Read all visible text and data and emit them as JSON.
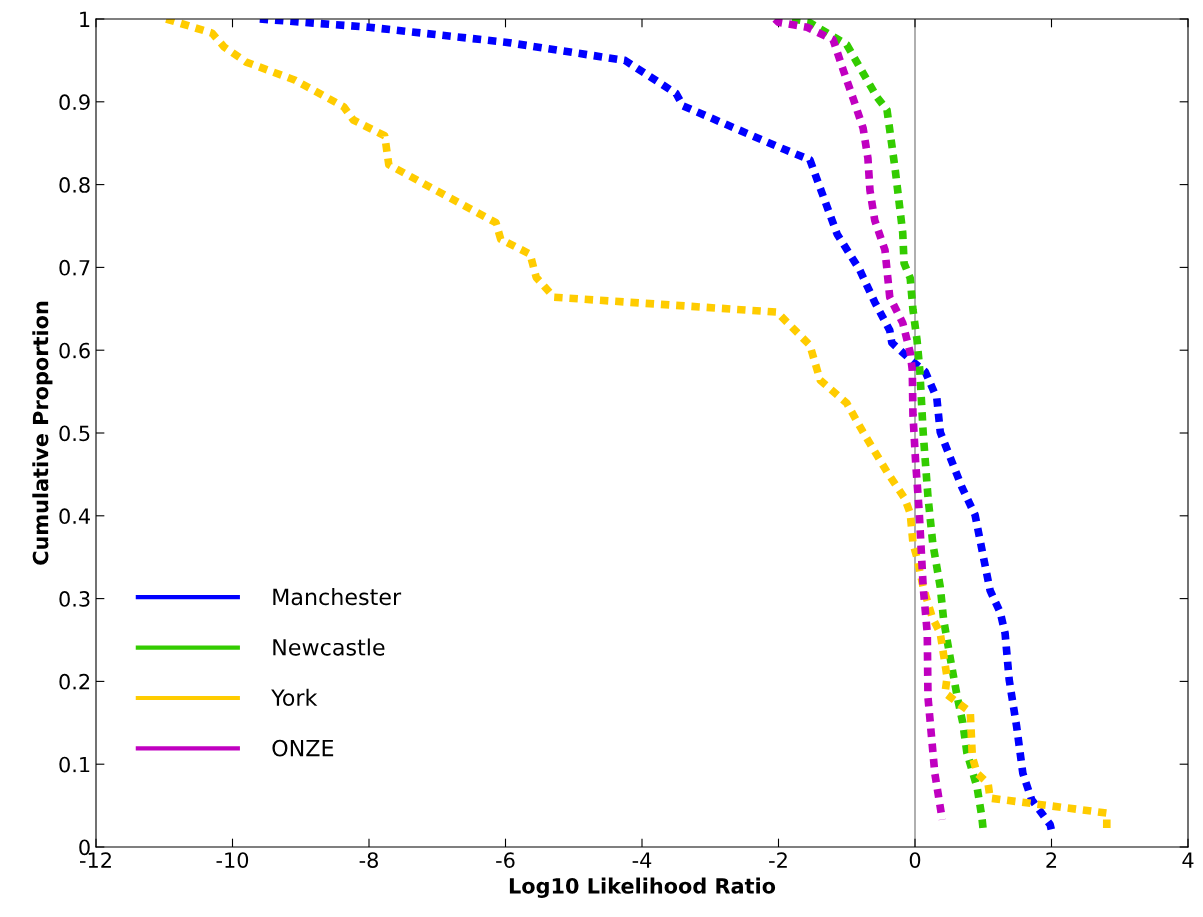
{
  "chart_data": {
    "type": "line",
    "xlabel": "Log10 Likelihood Ratio",
    "ylabel": "Cumulative Proportion",
    "xlim": [
      -12,
      4
    ],
    "ylim": [
      0,
      1
    ],
    "xticks": [
      -12,
      -10,
      -8,
      -6,
      -4,
      -2,
      0,
      2,
      4
    ],
    "yticks": [
      0,
      0.1,
      0.2,
      0.3,
      0.4,
      0.5,
      0.6,
      0.7,
      0.8,
      0.9,
      1
    ],
    "grid": false,
    "legend": "lower left",
    "line_style": "dotted",
    "marker": "none",
    "ref_lines": [
      {
        "axis": "x",
        "value": 0,
        "color": "#a0a0a0",
        "line_style": "solid"
      }
    ],
    "series": [
      {
        "name": "Manchester",
        "color": "#0000ff",
        "x": [
          -9.6,
          -8.0,
          -6.0,
          -4.25,
          -3.5,
          -3.4,
          -1.9,
          -1.54,
          -1.47,
          -1.14,
          -0.81,
          -0.59,
          -0.37,
          -0.34,
          -0.03,
          0.15,
          0.32,
          0.37,
          0.69,
          0.88,
          1.01,
          1.1,
          1.25,
          1.32,
          1.38,
          1.49,
          1.58,
          1.71,
          1.98,
          2.0
        ],
        "values": [
          1.0,
          0.99,
          0.972,
          0.95,
          0.91,
          0.895,
          0.842,
          0.83,
          0.814,
          0.74,
          0.697,
          0.658,
          0.624,
          0.609,
          0.586,
          0.574,
          0.542,
          0.501,
          0.434,
          0.401,
          0.347,
          0.31,
          0.283,
          0.258,
          0.202,
          0.145,
          0.089,
          0.057,
          0.027,
          0.02
        ]
      },
      {
        "name": "Newcastle",
        "color": "#33cc00",
        "x": [
          -1.8,
          -1.57,
          -1.0,
          -0.56,
          -0.41,
          -0.29,
          -0.18,
          -0.16,
          -0.07,
          -0.03,
          0.03,
          0.07,
          0.12,
          0.19,
          0.26,
          0.37,
          0.42,
          0.54,
          0.62,
          0.7,
          0.76,
          0.91,
          0.98,
          1.0
        ],
        "values": [
          1.0,
          0.997,
          0.969,
          0.906,
          0.89,
          0.818,
          0.742,
          0.705,
          0.687,
          0.649,
          0.612,
          0.576,
          0.5,
          0.423,
          0.367,
          0.314,
          0.274,
          0.217,
          0.181,
          0.15,
          0.114,
          0.072,
          0.036,
          0.02
        ]
      },
      {
        "name": "York",
        "color": "#ffcc00",
        "x": [
          -10.97,
          -10.3,
          -10.12,
          -9.8,
          -9.08,
          -8.37,
          -8.23,
          -7.77,
          -7.71,
          -6.14,
          -6.07,
          -5.64,
          -5.55,
          -5.29,
          -2.02,
          -1.89,
          -1.54,
          -1.39,
          -1.0,
          -0.76,
          -0.41,
          -0.15,
          -0.07,
          -0.03,
          0.03,
          0.12,
          0.25,
          0.37,
          0.47,
          0.44,
          0.63,
          0.81,
          0.84,
          0.91,
          1.07,
          1.1,
          2.81,
          2.81
        ],
        "values": [
          1.0,
          0.983,
          0.966,
          0.948,
          0.926,
          0.894,
          0.878,
          0.859,
          0.824,
          0.754,
          0.734,
          0.716,
          0.688,
          0.664,
          0.646,
          0.635,
          0.606,
          0.564,
          0.536,
          0.501,
          0.453,
          0.421,
          0.403,
          0.367,
          0.349,
          0.314,
          0.278,
          0.258,
          0.205,
          0.186,
          0.174,
          0.163,
          0.109,
          0.089,
          0.077,
          0.059,
          0.041,
          0.02
        ]
      },
      {
        "name": "ONZE",
        "color": "#c000c0",
        "x": [
          -2.05,
          -2.0,
          -1.58,
          -1.2,
          -1.05,
          -0.91,
          -0.76,
          -0.69,
          -0.66,
          -0.59,
          -0.44,
          -0.37,
          -0.18,
          -0.07,
          -0.04,
          -0.03,
          0.01,
          0.06,
          0.12,
          0.18,
          0.19,
          0.25,
          0.29,
          0.4
        ],
        "values": [
          1.0,
          0.996,
          0.99,
          0.975,
          0.938,
          0.905,
          0.868,
          0.832,
          0.793,
          0.757,
          0.721,
          0.664,
          0.633,
          0.597,
          0.576,
          0.522,
          0.464,
          0.407,
          0.314,
          0.258,
          0.181,
          0.126,
          0.089,
          0.033
        ]
      }
    ]
  }
}
